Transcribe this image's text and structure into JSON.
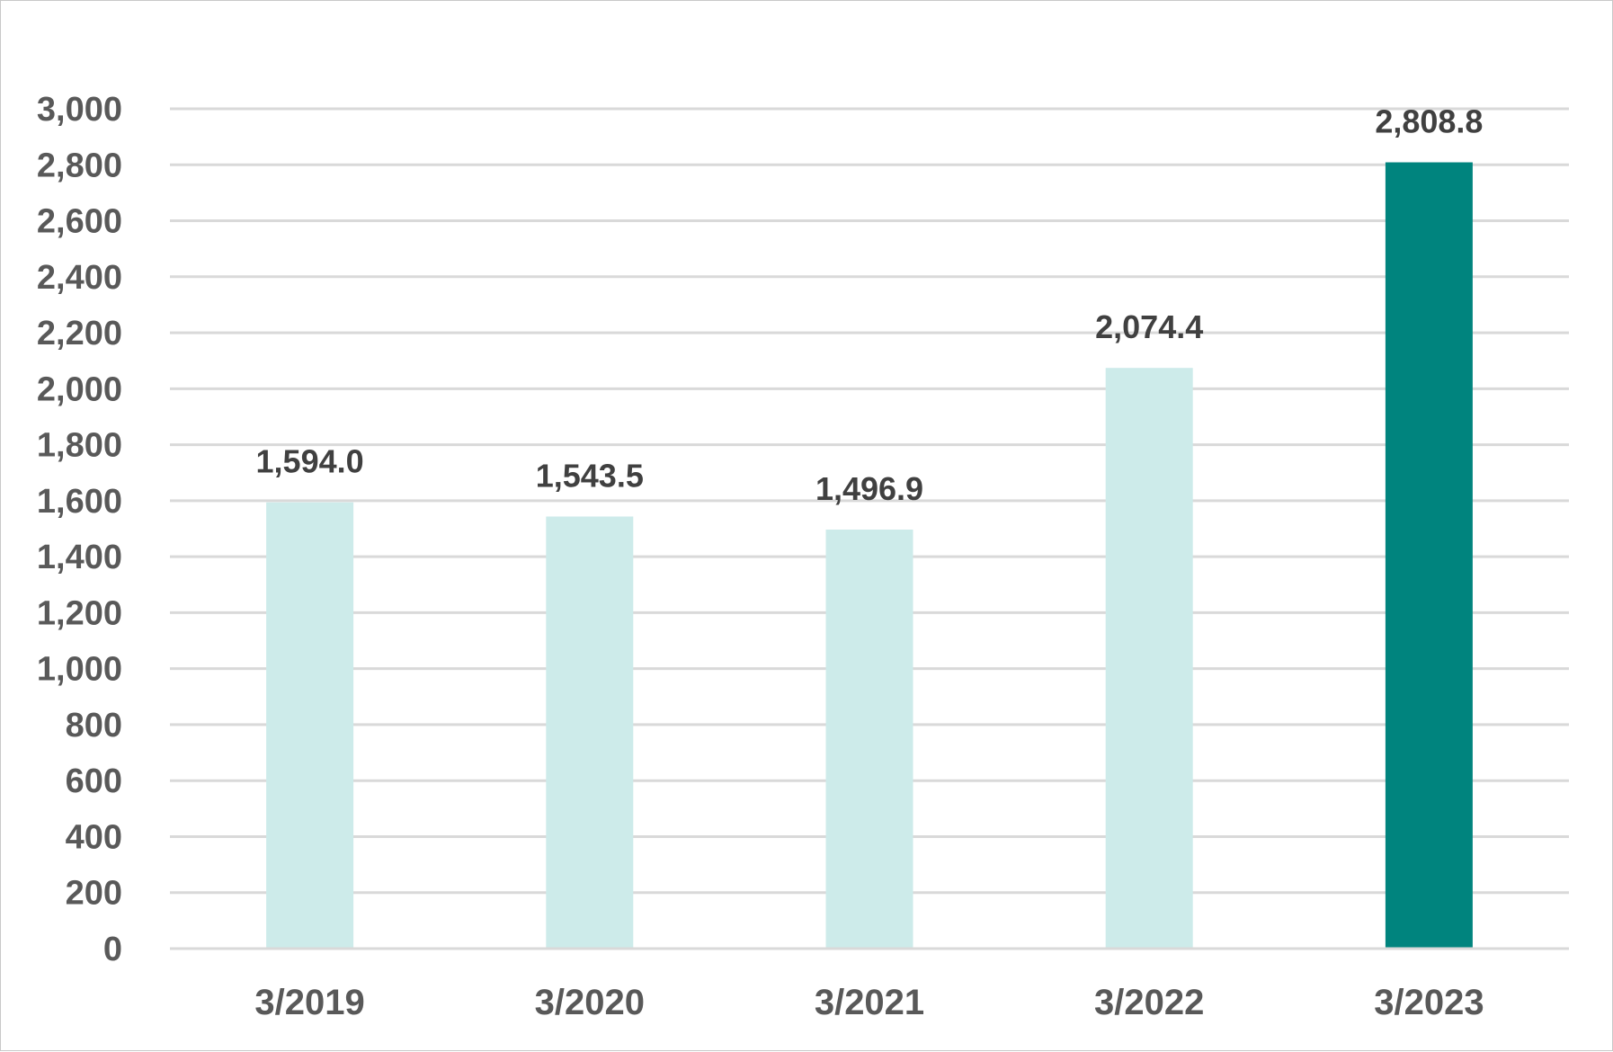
{
  "chart_data": {
    "type": "bar",
    "categories": [
      "3/2019",
      "3/2020",
      "3/2021",
      "3/2022",
      "3/2023"
    ],
    "values": [
      1594.0,
      1543.5,
      1496.9,
      2074.4,
      2808.8
    ],
    "value_labels": [
      "1,594.0",
      "1,543.5",
      "1,496.9",
      "2,074.4",
      "2,808.8"
    ],
    "bar_colors": [
      "#cdebea",
      "#cdebea",
      "#cdebea",
      "#cdebea",
      "#00847e"
    ],
    "y_ticks": [
      0,
      200,
      400,
      600,
      800,
      1000,
      1200,
      1400,
      1600,
      1800,
      2000,
      2200,
      2400,
      2600,
      2800,
      3000
    ],
    "y_tick_labels": [
      "0",
      "200",
      "400",
      "600",
      "800",
      "1,000",
      "1,200",
      "1,400",
      "1,600",
      "1,800",
      "2,000",
      "2,200",
      "2,400",
      "2,600",
      "2,800",
      "3,000"
    ],
    "ylim": [
      0,
      3000
    ],
    "grid": true,
    "legend": false,
    "title": "",
    "xlabel": "",
    "ylabel": ""
  }
}
